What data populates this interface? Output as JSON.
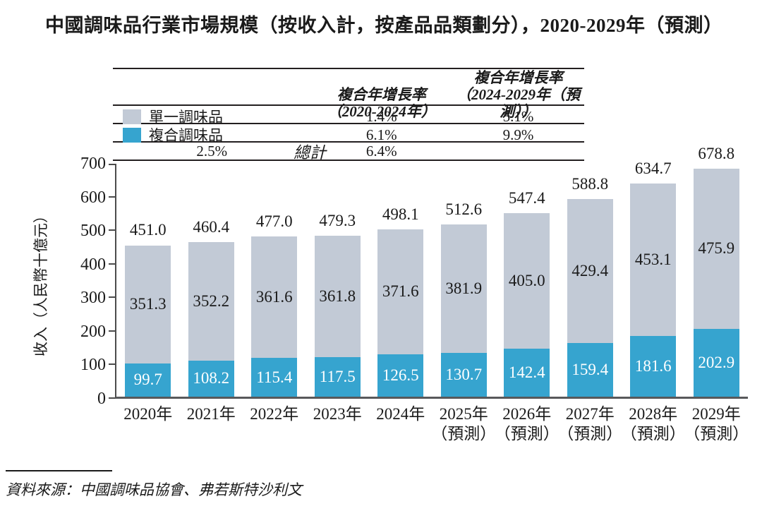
{
  "title": "中國調味品行業市場規模（按收入計，按產品品類劃分），2020-2029年（預測）",
  "table": {
    "col_headers": [
      {
        "line1": "複合年增長率",
        "line2": "（2020-2024年）"
      },
      {
        "line1": "複合年增長率",
        "line2": "（2024-2029年（預測））"
      }
    ],
    "rows": [
      {
        "swatch": "#c2cad6",
        "label": "單一調味品",
        "italic": false,
        "values": [
          "1.4%",
          "5.1%"
        ]
      },
      {
        "swatch": "#36a4cf",
        "label": "複合調味品",
        "italic": false,
        "values": [
          "6.1%",
          "9.9%"
        ]
      },
      {
        "swatch": null,
        "label": "總計",
        "italic": true,
        "values": [
          "2.5%",
          "6.4%"
        ]
      }
    ]
  },
  "chart_data": {
    "type": "bar",
    "stacked": true,
    "title": "中國調味品行業市場規模（按收入計，按產品品類劃分），2020-2029年（預測）",
    "xlabel": "",
    "ylabel": "收入（人民幣十億元）",
    "ylim": [
      0,
      700
    ],
    "yticks": [
      0,
      100,
      200,
      300,
      400,
      500,
      600,
      700
    ],
    "grid": false,
    "legend_position": "table-top-left",
    "categories": [
      {
        "label": "2020年",
        "sublabel": ""
      },
      {
        "label": "2021年",
        "sublabel": ""
      },
      {
        "label": "2022年",
        "sublabel": ""
      },
      {
        "label": "2023年",
        "sublabel": ""
      },
      {
        "label": "2024年",
        "sublabel": ""
      },
      {
        "label": "2025年",
        "sublabel": "（預測）"
      },
      {
        "label": "2026年",
        "sublabel": "（預測）"
      },
      {
        "label": "2027年",
        "sublabel": "（預測）"
      },
      {
        "label": "2028年",
        "sublabel": "（預測）"
      },
      {
        "label": "2029年",
        "sublabel": "（預測）"
      }
    ],
    "series": [
      {
        "name": "單一調味品",
        "color": "#c2cad6",
        "text_color": "#1a1a1a",
        "values": [
          351.3,
          352.2,
          361.6,
          361.8,
          371.6,
          381.9,
          405.0,
          429.4,
          453.1,
          475.9
        ]
      },
      {
        "name": "複合調味品",
        "color": "#36a4cf",
        "text_color": "#ffffff",
        "values": [
          99.7,
          108.2,
          115.4,
          117.5,
          126.5,
          130.7,
          142.4,
          159.4,
          181.6,
          202.9
        ]
      }
    ],
    "totals": [
      451.0,
      460.4,
      477.0,
      479.3,
      498.1,
      512.6,
      547.4,
      588.8,
      634.7,
      678.8
    ]
  },
  "source": "資料來源：中國調味品協會、弗若斯特沙利文",
  "colors": {
    "single_condiment": "#c2cad6",
    "compound_condiment": "#36a4cf",
    "axis": "#58595b",
    "text": "#1a1a1a",
    "table_border": "#231f20"
  }
}
